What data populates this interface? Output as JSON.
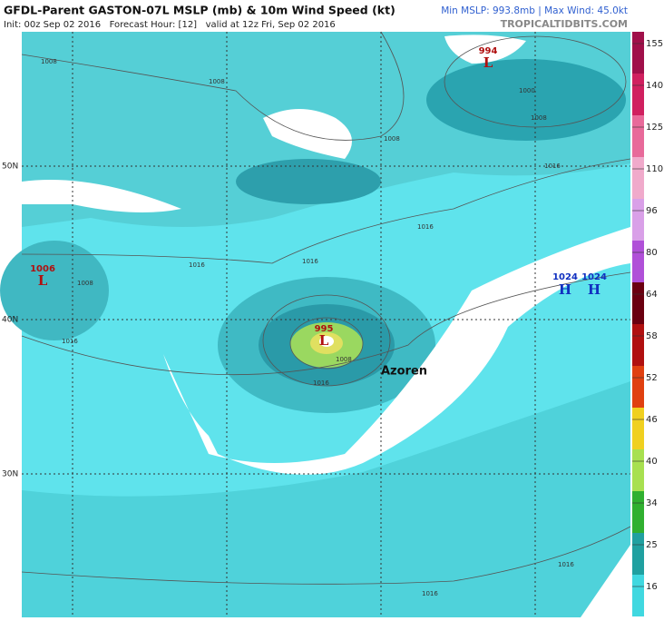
{
  "header": {
    "title": "GFDL-Parent GASTON-07L MSLP (mb) & 10m Wind Speed (kt)",
    "init": "Init: 00z Sep 02 2016   Forecast Hour: [12]   valid at 12z Fri, Sep 02 2016",
    "stats": "Min MSLP: 993.8mb | Max Wind: 45.0kt",
    "site": "TROPICALTIDBITS.COM"
  },
  "map": {
    "lat_labels": [
      "50N",
      "40N",
      "30N"
    ],
    "pressure_centers": [
      {
        "value": "994",
        "letter": "L"
      },
      {
        "value": "1006",
        "letter": "L"
      },
      {
        "value": "995",
        "letter": "L"
      },
      {
        "value": "1024",
        "letter": "H"
      },
      {
        "value": "1024",
        "letter": "H"
      }
    ],
    "isobar_labels": [
      "1008",
      "1008",
      "1008",
      "1000",
      "1008",
      "1016",
      "1016",
      "1016",
      "1016",
      "1008",
      "1016",
      "1008",
      "1016",
      "1016",
      "1016"
    ],
    "place": "Azoren"
  },
  "colorbar": {
    "ticks": [
      "155",
      "140",
      "125",
      "110",
      "96",
      "80",
      "64",
      "58",
      "52",
      "46",
      "40",
      "34",
      "25",
      "16"
    ],
    "colors": [
      "#a0104a",
      "#d0205f",
      "#e86a9a",
      "#f0aacb",
      "#d9a0e8",
      "#b050d8",
      "#6a0010",
      "#b01010",
      "#e04010",
      "#f0d020",
      "#a8e050",
      "#30b030",
      "#20a0a0",
      "#40d8e0"
    ]
  }
}
